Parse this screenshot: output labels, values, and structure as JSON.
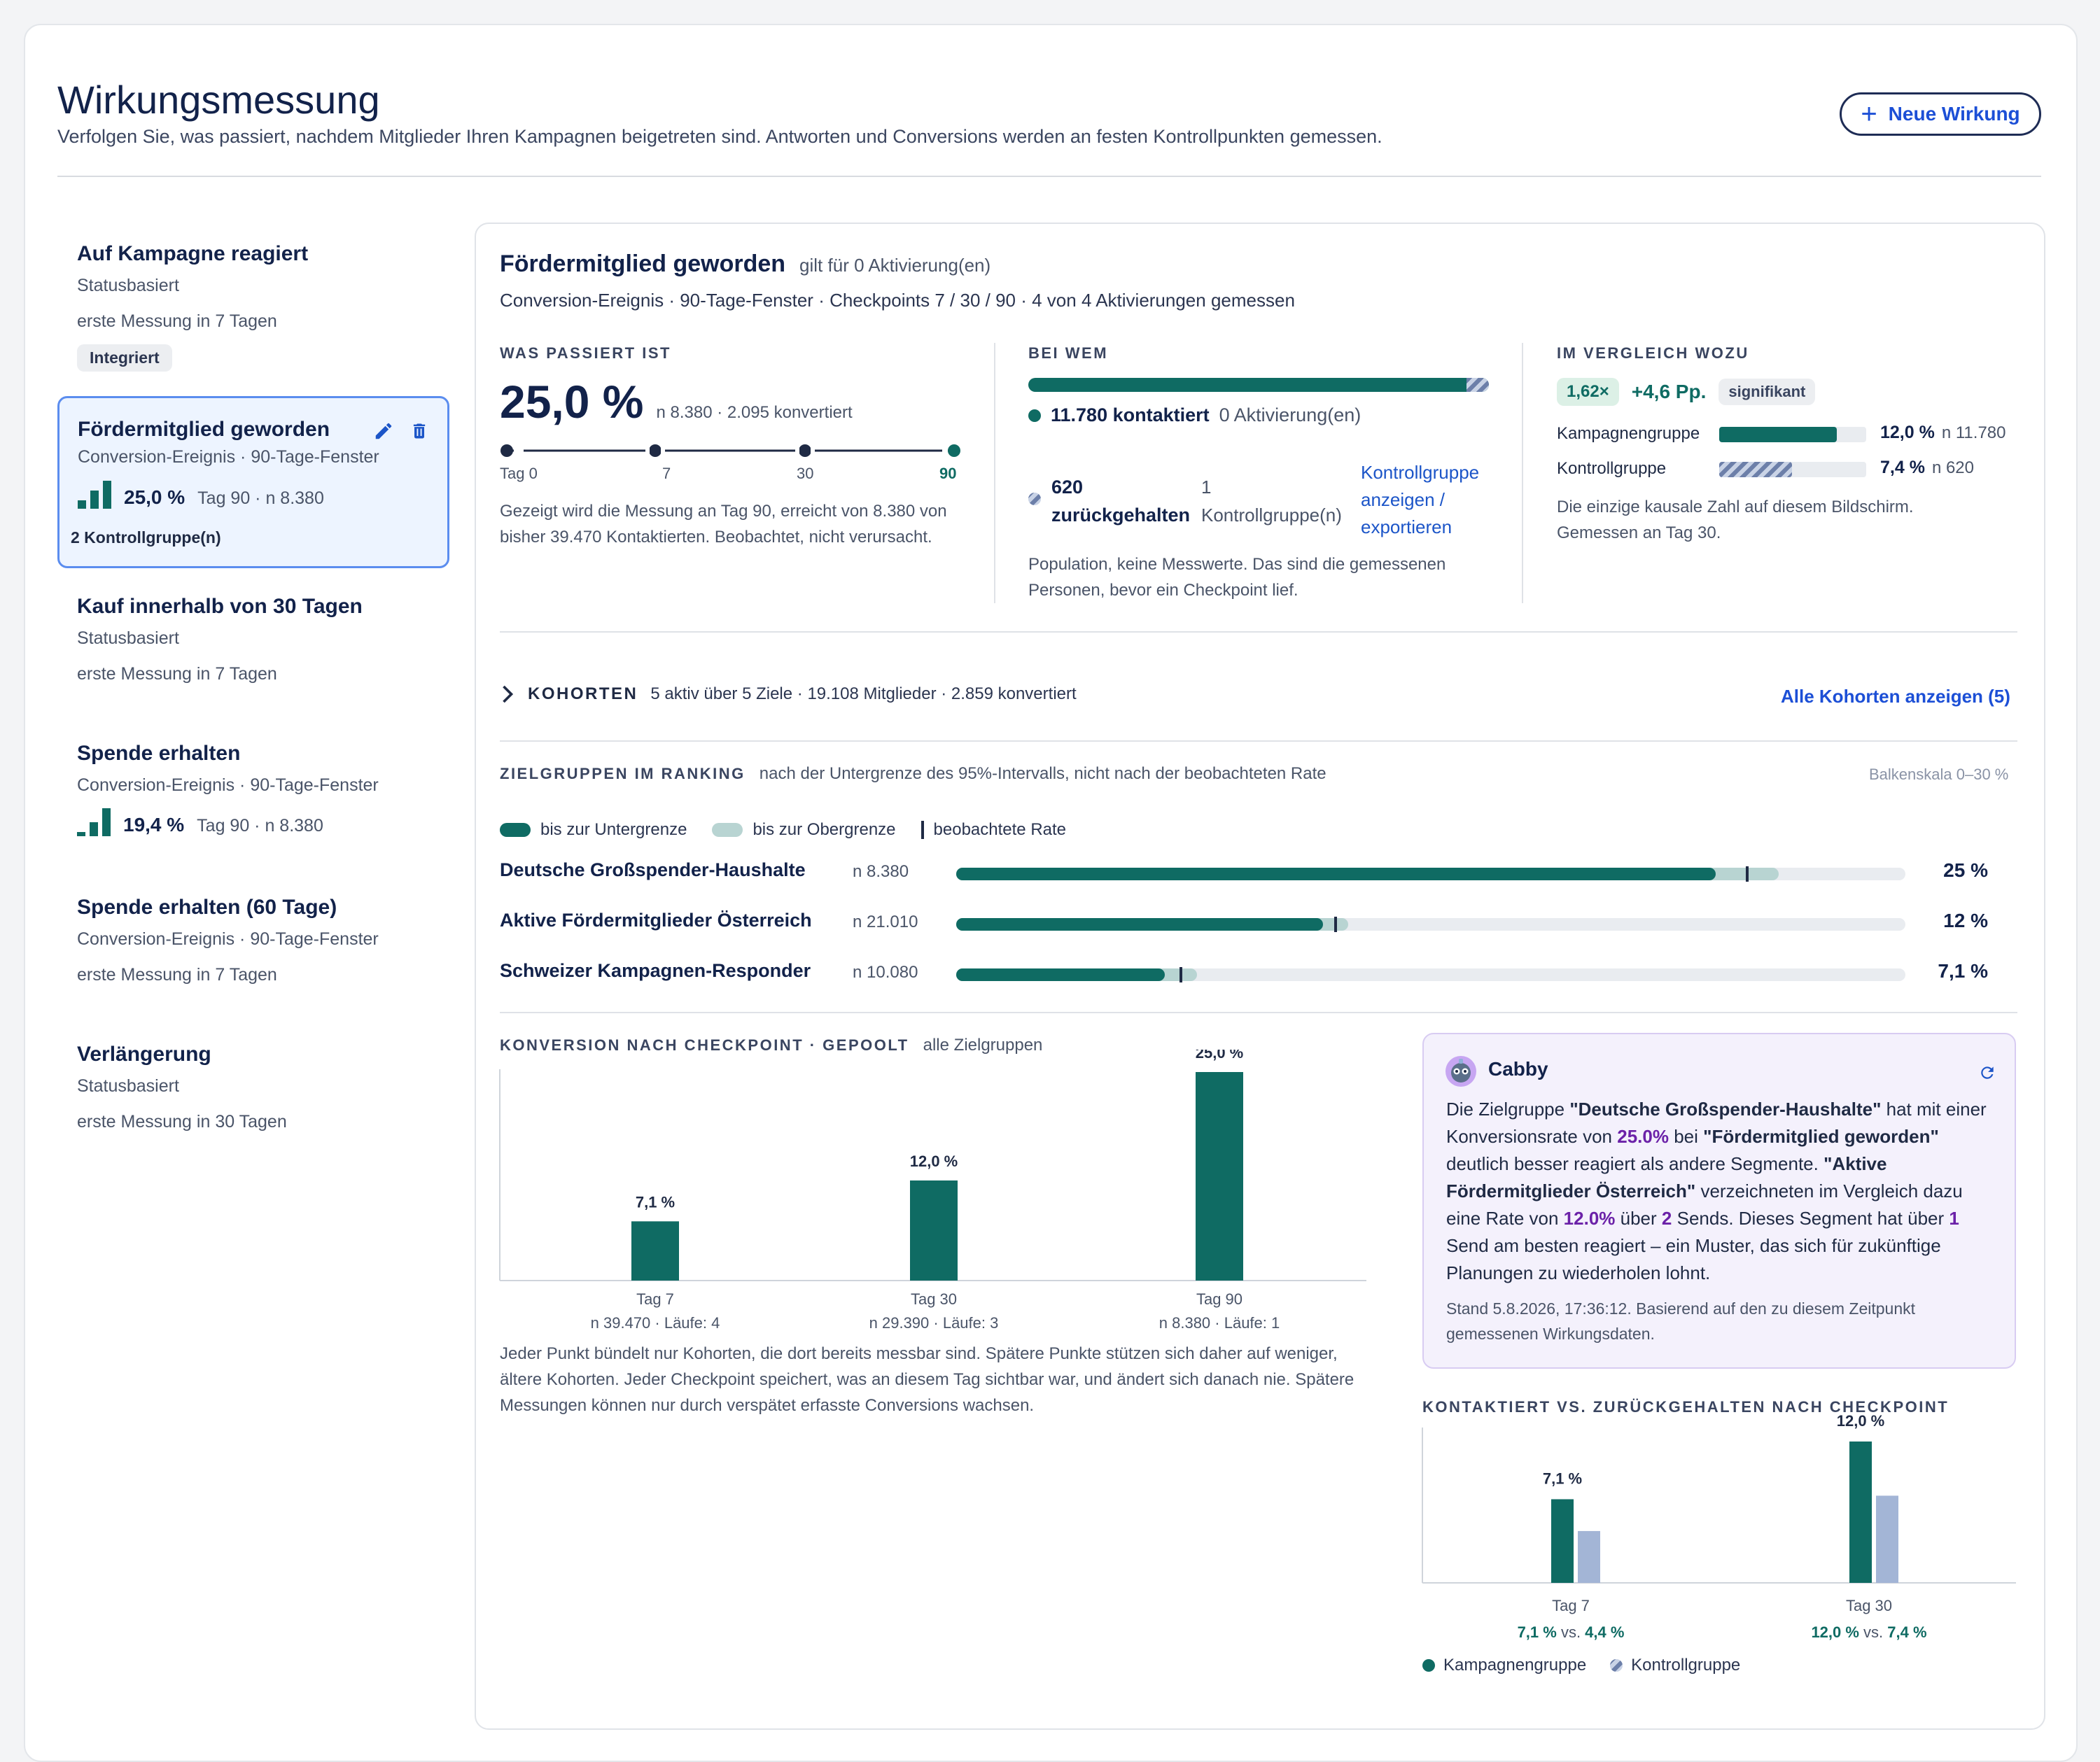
{
  "header": {
    "title": "Wirkungsmessung",
    "subtitle": "Verfolgen Sie, was passiert, nachdem Mitglieder Ihren Kampagnen beigetreten sind. Antworten und Conversions werden an festen Kontrollpunkten gemessen.",
    "new_button": "Neue Wirkung"
  },
  "sidebar": {
    "items": [
      {
        "title": "Auf Kampagne reagiert",
        "meta": "Statusbasiert",
        "meta2": "erste Messung in 7 Tagen",
        "badge": "Integriert"
      },
      {
        "title": "Fördermitglied geworden",
        "meta": "Conversion-Ereignis · 90-Tage-Fenster",
        "rate": "25,0 %",
        "rate_meta": "Tag 90 · n 8.380",
        "badge": "2 Kontrollgruppe(n)",
        "selected": true
      },
      {
        "title": "Kauf innerhalb von 30 Tagen",
        "meta": "Statusbasiert",
        "meta2": "erste Messung in 7 Tagen"
      },
      {
        "title": "Spende erhalten",
        "meta": "Conversion-Ereignis · 90-Tage-Fenster",
        "rate": "19,4 %",
        "rate_meta": "Tag 90 · n 8.380"
      },
      {
        "title": "Spende erhalten (60 Tage)",
        "meta": "Conversion-Ereignis · 90-Tage-Fenster",
        "meta2": "erste Messung in 7 Tagen"
      },
      {
        "title": "Verlängerung",
        "meta": "Statusbasiert",
        "meta2": "erste Messung in 30 Tagen"
      }
    ]
  },
  "detail": {
    "title": "Fördermitglied geworden",
    "title_note": "gilt für 0 Aktivierung(en)",
    "meta": "Conversion-Ereignis · 90-Tage-Fenster · Checkpoints 7 / 30 / 90 · 4 von 4 Aktivierungen gemessen",
    "what": {
      "label": "WAS PASSIERT IST",
      "rate": "25,0 %",
      "rate_meta": "n 8.380 · 2.095 konvertiert",
      "steps": [
        "Tag 0",
        "7",
        "30",
        "90"
      ],
      "note": "Gezeigt wird die Messung an Tag 90, erreicht von 8.380 von bisher 39.470 Kontaktierten. Beobachtet, nicht verursacht."
    },
    "who": {
      "label": "BEI WEM",
      "contacted": "11.780 kontaktiert",
      "contacted_note": "0 Aktivierung(en)",
      "held_num": "620",
      "held_label": "zurückgehalten",
      "held_groups_num": "1",
      "held_groups": "Kontrollgruppe(n)",
      "link": "Kontrollgruppe anzeigen / exportieren",
      "note": "Population, keine Messwerte. Das sind die gemessenen Personen, bevor ein Checkpoint lief."
    },
    "compare": {
      "label": "IM VERGLEICH WOZU",
      "lift": "1,62×",
      "pp": "+4,6 Pp.",
      "sig": "signifikant",
      "rows": [
        {
          "name": "Kampagnengruppe",
          "value": "12,0 %",
          "n": "n 11.780",
          "pct": 12.0
        },
        {
          "name": "Kontrollgruppe",
          "value": "7,4 %",
          "n": "n 620",
          "pct": 7.4
        }
      ],
      "note": "Die einzige kausale Zahl auf diesem Bildschirm. Gemessen an Tag 30."
    },
    "cohorts": {
      "label": "KOHORTEN",
      "meta": "5 aktiv über 5 Ziele · 19.108 Mitglieder · 2.859 konvertiert",
      "link": "Alle Kohorten anzeigen (5)"
    },
    "ranking": {
      "label": "ZIELGRUPPEN IM RANKING",
      "note": "nach der Untergrenze des 95%-Intervalls, nicht nach der beobachteten Rate",
      "scale": "Balkenskala 0–30 %",
      "legend": [
        "bis zur Untergrenze",
        "bis zur Obergrenze",
        "beobachtete Rate"
      ],
      "rows": [
        {
          "name": "Deutsche Großspender-Haushalte",
          "n": "n 8.380",
          "value": "25 %",
          "lower": 24.0,
          "upper": 26.0,
          "observed": 25.0
        },
        {
          "name": "Aktive Fördermitglieder Österreich",
          "n": "n 21.010",
          "value": "12 %",
          "lower": 11.6,
          "upper": 12.4,
          "observed": 12.0
        },
        {
          "name": "Schweizer Kampagnen-Responder",
          "n": "n 10.080",
          "value": "7,1 %",
          "lower": 6.6,
          "upper": 7.6,
          "observed": 7.1
        }
      ]
    },
    "pooled": {
      "label": "KONVERSION NACH CHECKPOINT · GEPOOLT",
      "note": "alle Zielgruppen",
      "footnote": "Jeder Punkt bündelt nur Kohorten, die dort bereits messbar sind. Spätere Punkte stützen sich daher auf weniger, ältere Kohorten. Jeder Checkpoint speichert, was an diesem Tag sichtbar war, und ändert sich danach nie. Spätere Messungen können nur durch verspätet erfasste Conversions wachsen."
    },
    "cabby": {
      "name": "Cabby",
      "t1": "Die Zielgruppe ",
      "b1": "\"Deutsche Großspender-Haushalte\"",
      "t2": " hat mit einer Konversionsrate von ",
      "p1": "25.0%",
      "t3": " bei ",
      "b2": "\"Fördermitglied geworden\"",
      "t4": " deutlich besser reagiert als andere Segmente. ",
      "b3": "\"Aktive Fördermitglieder Österreich\"",
      "t5": " verzeichneten im Vergleich dazu eine Rate von ",
      "p2": "12.0%",
      "t6": " über ",
      "p3": "2",
      "t7": " Sends. Dieses Segment hat über ",
      "p4": "1",
      "t8": " Send am besten reagiert – ein Muster, das sich für zukünftige Planungen zu wiederholen lohnt.",
      "stamp": "Stand 5.8.2026, 17:36:12. Basierend auf den zu diesem Zeitpunkt gemessenen Wirkungsdaten."
    },
    "contact_chart": {
      "label": "KONTAKTIERT VS. ZURÜCKGEHALTEN NACH CHECKPOINT",
      "legend": [
        "Kampagnengruppe",
        "Kontrollgruppe"
      ],
      "vs": "vs."
    }
  },
  "chart_data": [
    {
      "type": "bar",
      "title": "KONVERSION NACH CHECKPOINT · GEPOOLT",
      "categories": [
        "Tag 7",
        "Tag 30",
        "Tag 90"
      ],
      "sublabels": [
        "n 39.470 · Läufe: 4",
        "n 29.390 · Läufe: 3",
        "n 8.380 · Läufe: 1"
      ],
      "values": [
        7.1,
        12.0,
        25.0
      ],
      "value_labels": [
        "7,1 %",
        "12,0 %",
        "25,0 %"
      ],
      "ylim": [
        0,
        25
      ],
      "color": "#0f6b63"
    },
    {
      "type": "bar",
      "title": "KONTAKTIERT VS. ZURÜCKGEHALTEN NACH CHECKPOINT",
      "categories": [
        "Tag 7",
        "Tag 30"
      ],
      "series": [
        {
          "name": "Kampagnengruppe",
          "values": [
            7.1,
            12.0
          ],
          "labels": [
            "7,1 %",
            "12,0 %"
          ],
          "color": "#0f6b63"
        },
        {
          "name": "Kontrollgruppe",
          "values": [
            4.4,
            7.4
          ],
          "labels": [
            "4,4 %",
            "7,4 %"
          ],
          "color": "#a3b5d6"
        }
      ],
      "ylim": [
        0,
        12
      ]
    }
  ]
}
